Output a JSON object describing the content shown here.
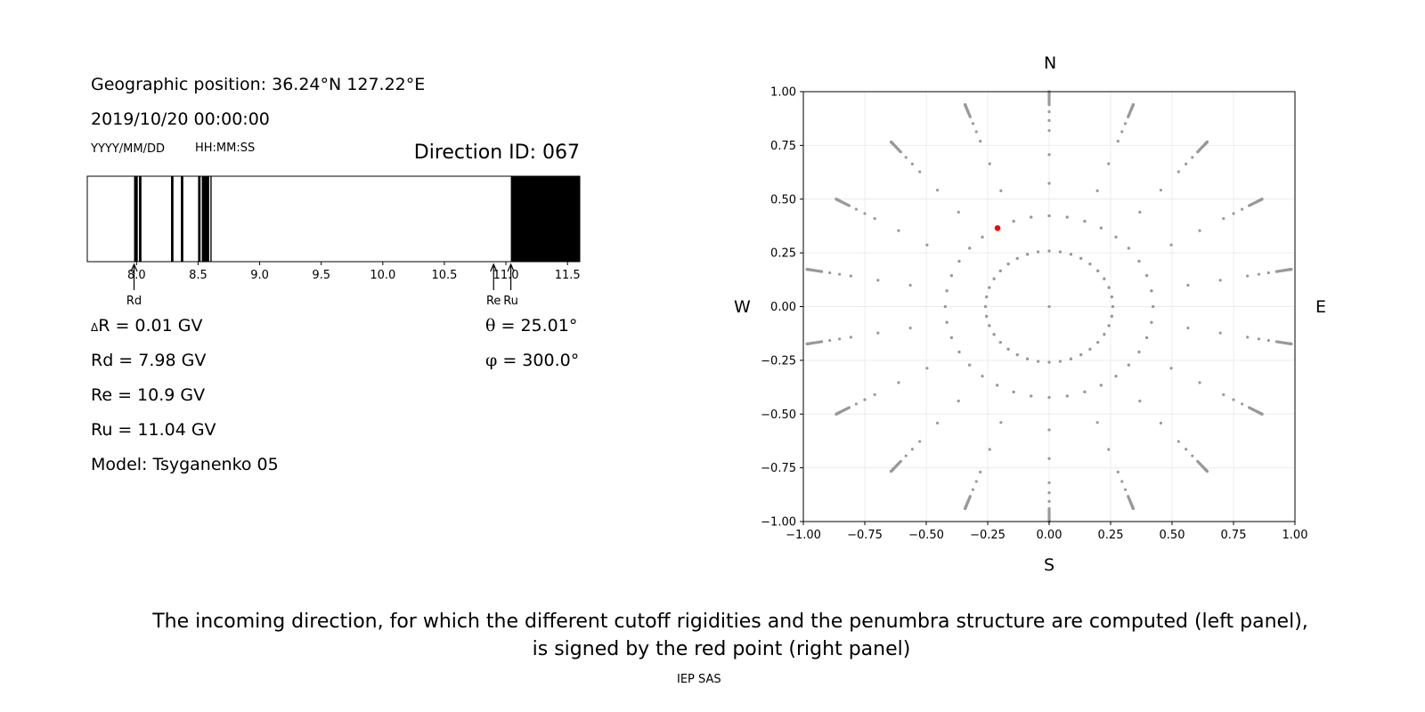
{
  "left_panel": {
    "geo_position": "Geographic position: 36.24°N 127.22°E",
    "datetime": "2019/10/20 00:00:00",
    "date_format": "YYYY/MM/DD",
    "time_format": "HH:MM:SS",
    "direction_id": "Direction ID: 067",
    "delta_r": {
      "symbol": "Δ",
      "text": "R = 0.01 GV"
    },
    "rd": "Rd = 7.98 GV",
    "re": "Re = 10.9 GV",
    "ru": "Ru = 11.04 GV",
    "model": "Model: Tsyganenko 05",
    "theta": {
      "symbol": "θ",
      "text": " = 25.01°"
    },
    "phi": {
      "symbol": "φ",
      "text": " = 300.0°"
    }
  },
  "compass": {
    "north": "N",
    "south": "S",
    "west": "W",
    "east": "E"
  },
  "caption": {
    "line1": "The incoming direction, for which the different cutoff rigidities and the penumbra structure are computed (left panel),",
    "line2": "is signed by the red point (right panel)"
  },
  "footer": "IEP SAS",
  "colors": {
    "allowed_band": "#000000",
    "grid_point": "#999999",
    "selected_point": "#ff0000"
  },
  "chart_data": [
    {
      "type": "bar",
      "name": "penumbra",
      "xlim": [
        7.6,
        11.6
      ],
      "ticks": [
        "8.0",
        "8.5",
        "9.0",
        "9.5",
        "10.0",
        "10.5",
        "11.0",
        "11.5"
      ],
      "allowed_intervals": [
        [
          7.98,
          8.01
        ],
        [
          8.02,
          8.04
        ],
        [
          8.28,
          8.3
        ],
        [
          8.36,
          8.38
        ],
        [
          8.5,
          8.52
        ],
        [
          8.53,
          8.59
        ],
        [
          8.6,
          8.61
        ],
        [
          11.04,
          11.6
        ]
      ],
      "markers": [
        {
          "label": "Rd",
          "value": 7.98
        },
        {
          "label": "Re",
          "value": 10.9
        },
        {
          "label": "Ru",
          "value": 11.04
        }
      ]
    },
    {
      "type": "scatter",
      "name": "directions",
      "xlim": [
        -1.0,
        1.0
      ],
      "ylim": [
        -1.0,
        1.0
      ],
      "xticks": [
        "−1.00",
        "−0.75",
        "−0.50",
        "−0.25",
        "0.00",
        "0.25",
        "0.50",
        "0.75",
        "1.00"
      ],
      "yticks": [
        "1.00",
        "0.75",
        "0.50",
        "0.25",
        "0.00",
        "−0.25",
        "−0.50",
        "−0.75",
        "−1.00"
      ],
      "grid": true,
      "grid_pattern": {
        "zenith_angles_deg": [
          0,
          15,
          25,
          35,
          45,
          55,
          60,
          65,
          70,
          75,
          80,
          85,
          90
        ],
        "dense_zenith_angles_deg": [
          80,
          85,
          90
        ],
        "azimuth_step_deg": 10
      },
      "selected_point": {
        "x": -0.21,
        "y": 0.365
      }
    }
  ]
}
